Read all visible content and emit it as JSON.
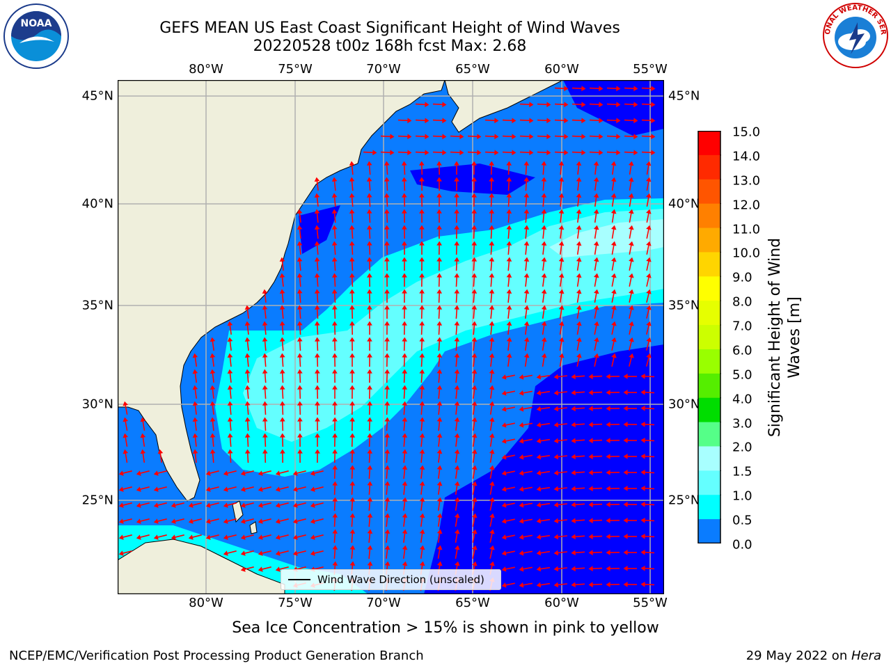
{
  "header": {
    "title": "GEFS MEAN US East Coast Significant Height of Wind Waves",
    "subtitle": "20220528 t00z 168h fcst   Max: 2.68"
  },
  "map": {
    "lon_ticks": [
      "80°W",
      "75°W",
      "70°W",
      "65°W",
      "60°W",
      "55°W"
    ],
    "lat_ticks": [
      "45°N",
      "40°N",
      "35°N",
      "30°N",
      "25°N"
    ],
    "colors": {
      "land": "#efefdc",
      "ocean_0": "#0000ff",
      "ocean_05": "#0a7cff",
      "ocean_10": "#00ffff",
      "ocean_15": "#64ffff",
      "ocean_20": "#a8ffff",
      "arrow": "#ff0000",
      "grid": "#b0b0b0"
    }
  },
  "legend": {
    "label": "Wind Wave Direction (unscaled)"
  },
  "colorbar": {
    "label": "Significant Height of Wind Waves [m]",
    "ticks": [
      "15.0",
      "14.0",
      "13.0",
      "12.0",
      "11.0",
      "10.0",
      "9.0",
      "8.0",
      "7.0",
      "6.0",
      "5.0",
      "4.0",
      "3.0",
      "2.0",
      "1.5",
      "1.0",
      "0.5",
      "0.0"
    ],
    "colors": [
      "#ff0000",
      "#ff2a00",
      "#ff5500",
      "#ff8000",
      "#ffaa00",
      "#ffd500",
      "#ffff00",
      "#e6ff00",
      "#ccff00",
      "#99ff00",
      "#55ee00",
      "#00dd00",
      "#55ff88",
      "#a8ffff",
      "#64ffff",
      "#00ffff",
      "#0a7cff",
      "#0000ff"
    ]
  },
  "note": "Sea Ice Concentration > 15% is shown in pink to yellow",
  "footer": {
    "left": "NCEP/EMC/Verification Post Processing Product Generation Branch",
    "right_prefix": "29 May 2022 on ",
    "right_host": "Hera"
  },
  "logos": {
    "noaa_text": "NOAA",
    "nws_text": "NATIONAL WEATHER SERVICE"
  }
}
